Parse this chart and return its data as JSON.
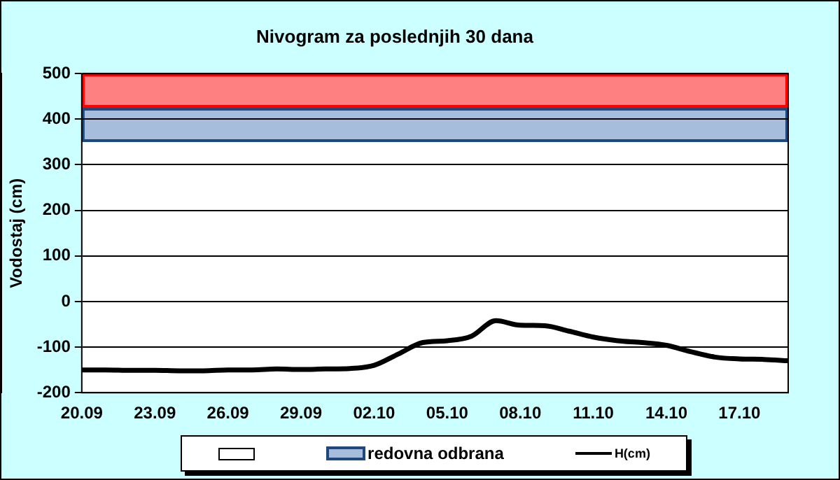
{
  "chart_data": {
    "type": "line",
    "title": "Nivogram za poslednjih 30 dana",
    "ylabel": "Vodostaj (cm)",
    "x": [
      "--09-20",
      "--09-21",
      "--09-22",
      "--09-23",
      "--09-24",
      "--09-25",
      "--09-26",
      "--09-27",
      "--09-28",
      "--09-29",
      "--09-30",
      "--10-01",
      "--10-02",
      "--10-03",
      "--10-04",
      "--10-05",
      "--10-06",
      "--10-07",
      "--10-08",
      "--10-09",
      "--10-10",
      "--10-11",
      "--10-12",
      "--10-13",
      "--10-14",
      "--10-15",
      "--10-16",
      "--10-17",
      "--10-18",
      "--10-19"
    ],
    "series": [
      {
        "name": "H(cm)",
        "color": "#000000",
        "values": [
          -150,
          -150,
          -151,
          -151,
          -152,
          -152,
          -150,
          -150,
          -148,
          -149,
          -148,
          -147,
          -140,
          -115,
          -90,
          -86,
          -76,
          -42,
          -52,
          -53,
          -65,
          -78,
          -86,
          -90,
          -96,
          -110,
          -122,
          -126,
          -127,
          -130
        ]
      }
    ],
    "xlim": [
      "--09-20",
      "--10-19"
    ],
    "xticks": [
      {
        "value": "--09-20",
        "label": "20.09"
      },
      {
        "value": "--09-23",
        "label": "23.09"
      },
      {
        "value": "--09-26",
        "label": "26.09"
      },
      {
        "value": "--09-29",
        "label": "29.09"
      },
      {
        "value": "--10-02",
        "label": "02.10"
      },
      {
        "value": "--10-05",
        "label": "05.10"
      },
      {
        "value": "--10-08",
        "label": "08.10"
      },
      {
        "value": "--10-11",
        "label": "11.10"
      },
      {
        "value": "--10-14",
        "label": "14.10"
      },
      {
        "value": "--10-17",
        "label": "17.10"
      }
    ],
    "ylim": [
      -200,
      500
    ],
    "yticks": [
      -200,
      -100,
      0,
      100,
      200,
      300,
      400,
      500
    ],
    "bands": [
      {
        "axis": "y",
        "from": 425,
        "to": 500,
        "label": null,
        "color": "#ff8080"
      },
      {
        "axis": "y",
        "from": 350,
        "to": 425,
        "label": "redovna odbrana",
        "color": "#a6bddb"
      }
    ],
    "grid": "y",
    "legend": "bottom",
    "marker": "none",
    "line_style": "solid"
  }
}
